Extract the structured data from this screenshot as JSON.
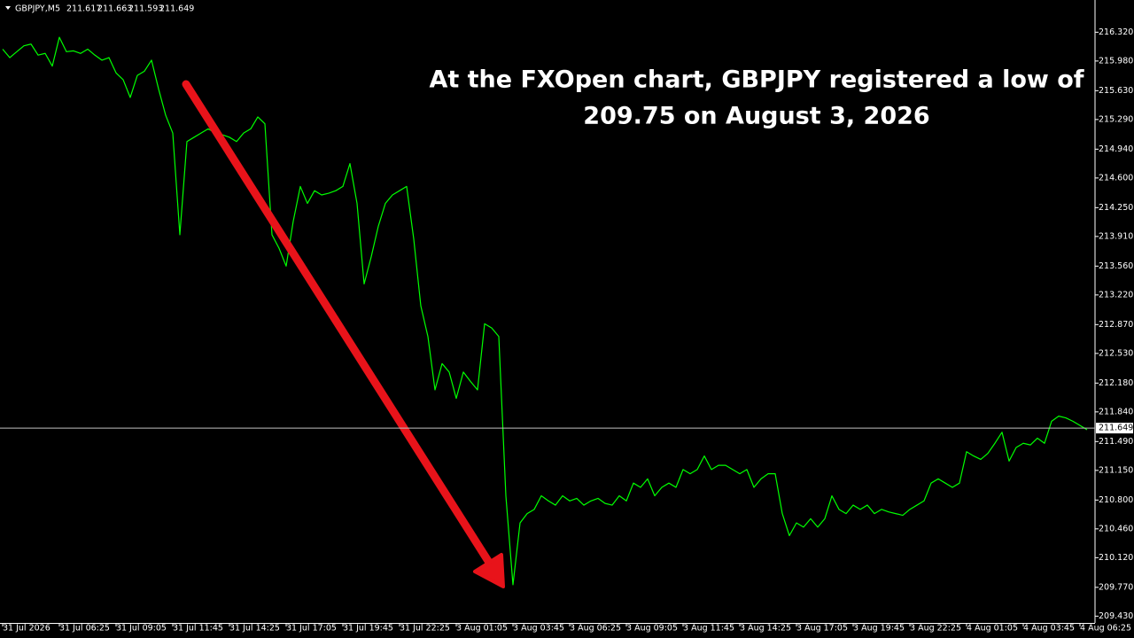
{
  "header": {
    "symbol": "GBPJPY,M5",
    "ohlc": [
      211.617,
      211.663,
      211.593,
      211.649
    ]
  },
  "chart_data": {
    "type": "line",
    "annotation": [
      "At the FXOpen chart, GBPJPY registered a low of",
      "209.75 on August 3, 2026"
    ],
    "color": "#00ff00",
    "current_price": 211.649,
    "ylim": [
      209.35,
      216.7
    ],
    "yticks": [
      {
        "value": 216.32,
        "label": "216.320"
      },
      {
        "value": 215.98,
        "label": "215.980"
      },
      {
        "value": 215.63,
        "label": "215.630"
      },
      {
        "value": 215.29,
        "label": "215.290"
      },
      {
        "value": 214.94,
        "label": "214.940"
      },
      {
        "value": 214.6,
        "label": "214.600"
      },
      {
        "value": 214.25,
        "label": "214.250"
      },
      {
        "value": 213.91,
        "label": "213.910"
      },
      {
        "value": 213.56,
        "label": "213.560"
      },
      {
        "value": 213.22,
        "label": "213.220"
      },
      {
        "value": 212.87,
        "label": "212.870"
      },
      {
        "value": 212.53,
        "label": "212.530"
      },
      {
        "value": 212.18,
        "label": "212.180"
      },
      {
        "value": 211.84,
        "label": "211.840"
      },
      {
        "value": 211.49,
        "label": "211.490"
      },
      {
        "value": 211.15,
        "label": "211.150"
      },
      {
        "value": 210.8,
        "label": "210.800"
      },
      {
        "value": 210.46,
        "label": "210.460"
      },
      {
        "value": 210.12,
        "label": "210.120"
      },
      {
        "value": 209.77,
        "label": "209.770"
      },
      {
        "value": 209.43,
        "label": "209.430"
      }
    ],
    "categories": [
      "31 Jul 2026",
      null,
      null,
      null,
      null,
      null,
      null,
      null,
      "31 Jul 06:25",
      null,
      null,
      null,
      null,
      null,
      null,
      null,
      "31 Jul 09:05",
      null,
      null,
      null,
      null,
      null,
      null,
      null,
      "31 Jul 11:45",
      null,
      null,
      null,
      null,
      null,
      null,
      null,
      "31 Jul 14:25",
      null,
      null,
      null,
      null,
      null,
      null,
      null,
      "31 Jul 17:05",
      null,
      null,
      null,
      null,
      null,
      null,
      null,
      "31 Jul 19:45",
      null,
      null,
      null,
      null,
      null,
      null,
      null,
      "31 Jul 22:25",
      null,
      null,
      null,
      null,
      null,
      null,
      null,
      "3 Aug 01:05",
      null,
      null,
      null,
      null,
      null,
      null,
      null,
      "3 Aug 03:45",
      null,
      null,
      null,
      null,
      null,
      null,
      null,
      "3 Aug 06:25",
      null,
      null,
      null,
      null,
      null,
      null,
      null,
      "3 Aug 09:05",
      null,
      null,
      null,
      null,
      null,
      null,
      null,
      "3 Aug 11:45",
      null,
      null,
      null,
      null,
      null,
      null,
      null,
      "3 Aug 14:25",
      null,
      null,
      null,
      null,
      null,
      null,
      null,
      "3 Aug 17:05",
      null,
      null,
      null,
      null,
      null,
      null,
      null,
      "3 Aug 19:45",
      null,
      null,
      null,
      null,
      null,
      null,
      null,
      "3 Aug 22:25",
      null,
      null,
      null,
      null,
      null,
      null,
      null,
      "4 Aug 01:05",
      null,
      null,
      null,
      null,
      null,
      null,
      null,
      "4 Aug 03:45",
      null,
      null,
      null,
      null,
      null,
      null,
      null,
      "4 Aug 06:25",
      null
    ],
    "values": [
      216.12,
      216.02,
      216.09,
      216.16,
      216.18,
      216.05,
      216.07,
      215.92,
      216.26,
      216.09,
      216.1,
      216.07,
      216.12,
      216.05,
      215.99,
      216.02,
      215.84,
      215.76,
      215.55,
      215.81,
      215.86,
      215.99,
      215.65,
      215.34,
      215.13,
      213.93,
      215.03,
      215.08,
      215.13,
      215.18,
      215.13,
      215.11,
      215.08,
      215.03,
      215.13,
      215.18,
      215.32,
      215.24,
      213.93,
      213.77,
      213.56,
      214.09,
      214.5,
      214.3,
      214.45,
      214.4,
      214.42,
      214.45,
      214.5,
      214.77,
      214.3,
      213.35,
      213.67,
      214.03,
      214.3,
      214.4,
      214.45,
      214.5,
      213.88,
      213.09,
      212.73,
      212.1,
      212.41,
      212.31,
      212.0,
      212.31,
      212.2,
      212.1,
      212.88,
      212.83,
      212.73,
      210.85,
      209.8,
      210.53,
      210.64,
      210.69,
      210.85,
      210.79,
      210.74,
      210.85,
      210.79,
      210.82,
      210.74,
      210.79,
      210.82,
      210.76,
      210.74,
      210.85,
      210.79,
      211.0,
      210.95,
      211.05,
      210.85,
      210.95,
      211.0,
      210.95,
      211.16,
      211.11,
      211.16,
      211.32,
      211.16,
      211.21,
      211.21,
      211.16,
      211.11,
      211.16,
      210.95,
      211.05,
      211.11,
      211.11,
      210.64,
      210.38,
      210.53,
      210.48,
      210.58,
      210.48,
      210.58,
      210.85,
      210.69,
      210.64,
      210.74,
      210.69,
      210.74,
      210.64,
      210.69,
      210.66,
      210.64,
      210.62,
      210.69,
      210.74,
      210.79,
      211.0,
      211.05,
      211.0,
      210.95,
      211.0,
      211.37,
      211.32,
      211.28,
      211.35,
      211.47,
      211.6,
      211.26,
      211.42,
      211.47,
      211.45,
      211.53,
      211.47,
      211.73,
      211.79,
      211.77,
      211.73,
      211.68,
      211.63
    ]
  }
}
